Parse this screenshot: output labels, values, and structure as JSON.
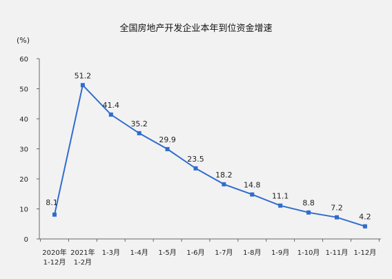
{
  "chart_data": {
    "type": "line",
    "title": "全国房地产开发企业本年到位资金增速",
    "ylabel": "(%)",
    "ylim": [
      0,
      60
    ],
    "yticks": [
      0,
      10,
      20,
      30,
      40,
      50,
      60
    ],
    "grid": false,
    "series_color": "#2e6ccf",
    "categories": [
      [
        "2020年",
        "1-12月"
      ],
      [
        "2021年",
        "1-2月"
      ],
      [
        "1-3月"
      ],
      [
        "1-4月"
      ],
      [
        "1-5月"
      ],
      [
        "1-6月"
      ],
      [
        "1-7月"
      ],
      [
        "1-8月"
      ],
      [
        "1-9月"
      ],
      [
        "1-10月"
      ],
      [
        "1-11月"
      ],
      [
        "1-12月"
      ]
    ],
    "values": [
      8.1,
      51.2,
      41.4,
      35.2,
      29.9,
      23.5,
      18.2,
      14.8,
      11.1,
      8.8,
      7.2,
      4.2
    ],
    "data_labels": [
      "8.1",
      "51.2",
      "41.4",
      "35.2",
      "29.9",
      "23.5",
      "18.2",
      "14.8",
      "11.1",
      "8.8",
      "7.2",
      "4.2"
    ]
  }
}
